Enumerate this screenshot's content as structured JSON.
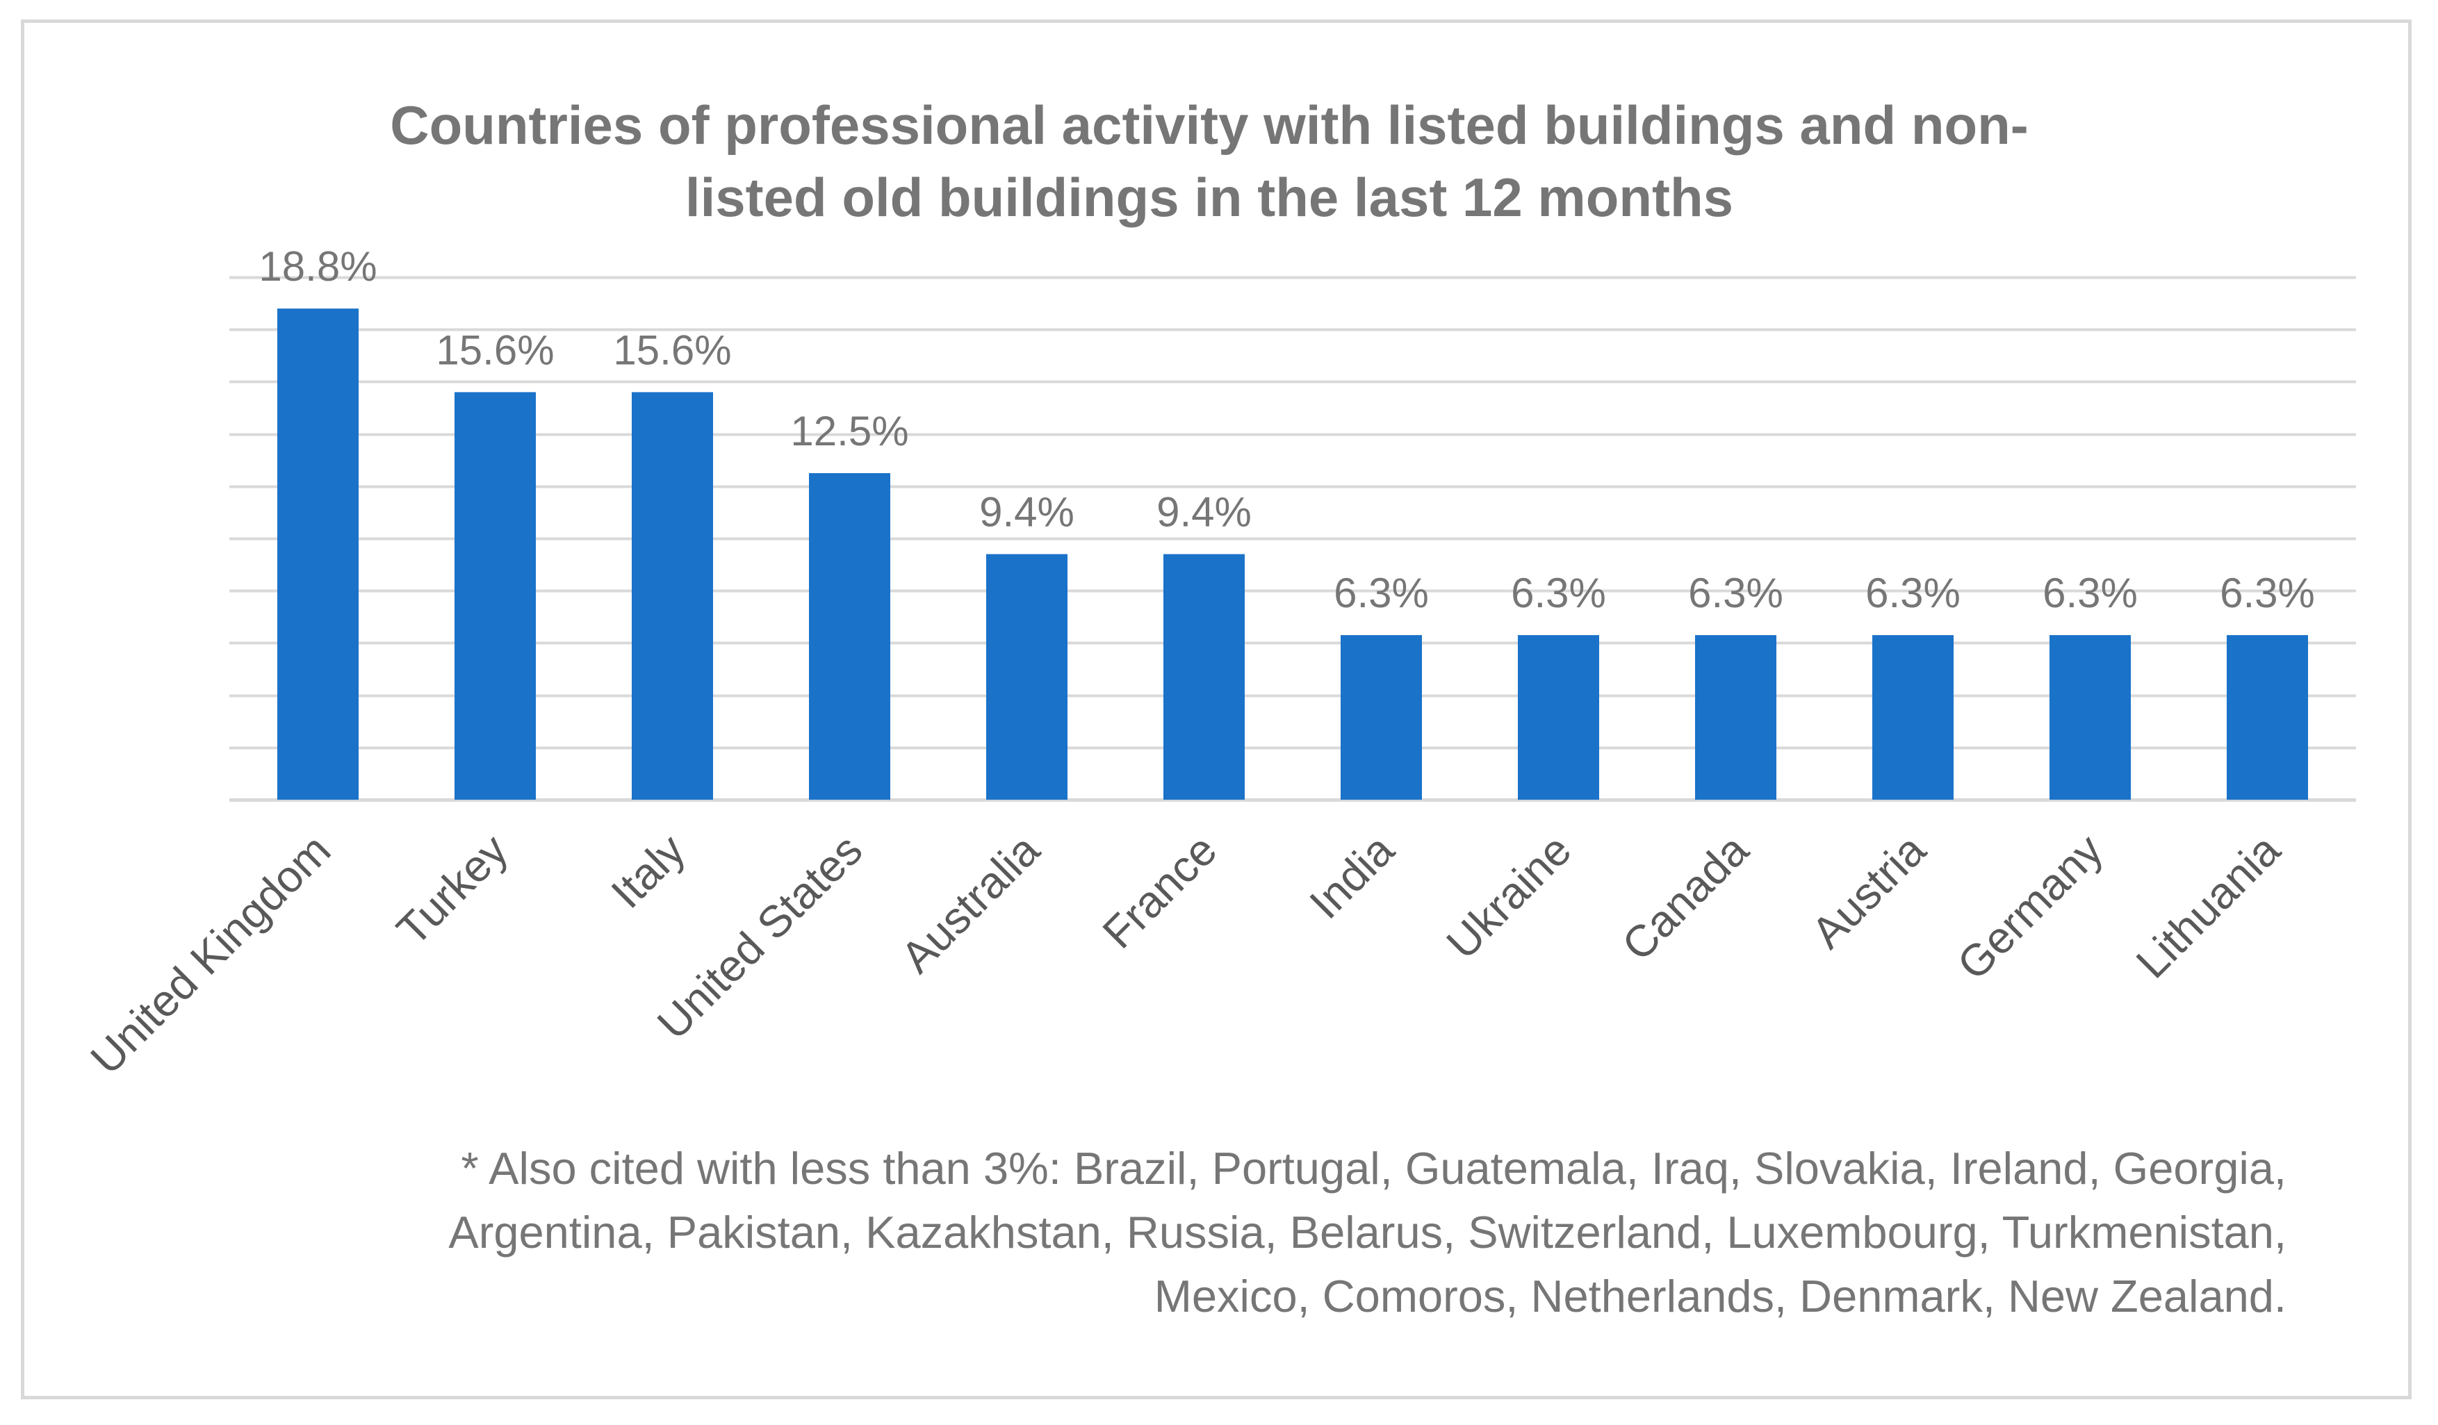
{
  "chart_data": {
    "type": "bar",
    "title": "Countries of professional activity with listed buildings and non-listed old buildings in the last 12 months",
    "categories": [
      "United Kingdom",
      "Turkey",
      "Italy",
      "United States",
      "Australia",
      "France",
      "India",
      "Ukraine",
      "Canada",
      "Austria",
      "Germany",
      "Lithuania"
    ],
    "values": [
      18.8,
      15.6,
      15.6,
      12.5,
      9.4,
      9.4,
      6.3,
      6.3,
      6.3,
      6.3,
      6.3,
      6.3
    ],
    "data_labels": [
      "18.8%",
      "15.6%",
      "15.6%",
      "12.5%",
      "9.4%",
      "9.4%",
      "6.3%",
      "6.3%",
      "6.3%",
      "6.3%",
      "6.3%",
      "6.3%"
    ],
    "ylim": [
      0,
      20
    ],
    "grid": true,
    "gridline_step": 2,
    "legend": "none",
    "bar_color": "#1a72c9",
    "gridline_color": "#d9d9d9",
    "text_color": "#767676",
    "footnote": "* Also cited with less than 3%: Brazil, Portugal, Guatemala, Iraq, Slovakia, Ireland, Georgia, Argentina, Pakistan, Kazakhstan, Russia, Belarus, Switzerland, Luxembourg, Turkmenistan, Mexico, Comoros, Netherlands, Denmark, New Zealand."
  }
}
